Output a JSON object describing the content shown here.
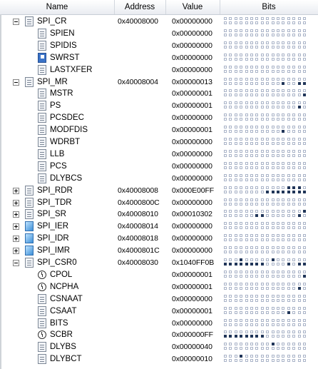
{
  "columns": {
    "name": "Name",
    "address": "Address",
    "value": "Value",
    "bits": "Bits"
  },
  "rows": [
    {
      "name": "SPI_CR",
      "level": 0,
      "expander": "minus",
      "icon": "reg",
      "address": "0x40008000",
      "value": "0x00000000",
      "bits": []
    },
    {
      "name": "SPIEN",
      "level": 1,
      "icon": "reg",
      "address": "",
      "value": "0x00000000",
      "bits": []
    },
    {
      "name": "SPIDIS",
      "level": 1,
      "icon": "reg",
      "address": "",
      "value": "0x00000000",
      "bits": []
    },
    {
      "name": "SWRST",
      "level": 1,
      "icon": "flag",
      "address": "",
      "value": "0x00000000",
      "bits": []
    },
    {
      "name": "LASTXFER",
      "level": 1,
      "icon": "reg",
      "address": "",
      "value": "0x00000000",
      "bits": []
    },
    {
      "name": "SPI_MR",
      "level": 0,
      "expander": "minus",
      "icon": "reg",
      "address": "0x40008004",
      "value": "0x00000013",
      "bits": [
        0,
        1,
        4
      ]
    },
    {
      "name": "MSTR",
      "level": 1,
      "icon": "reg",
      "address": "",
      "value": "0x00000001",
      "bits": [
        0
      ]
    },
    {
      "name": "PS",
      "level": 1,
      "icon": "reg",
      "address": "",
      "value": "0x00000001",
      "bits": [
        1
      ]
    },
    {
      "name": "PCSDEC",
      "level": 1,
      "icon": "reg",
      "address": "",
      "value": "0x00000000",
      "bits": []
    },
    {
      "name": "MODFDIS",
      "level": 1,
      "icon": "reg",
      "address": "",
      "value": "0x00000001",
      "bits": [
        4
      ]
    },
    {
      "name": "WDRBT",
      "level": 1,
      "icon": "reg",
      "address": "",
      "value": "0x00000000",
      "bits": []
    },
    {
      "name": "LLB",
      "level": 1,
      "icon": "reg",
      "address": "",
      "value": "0x00000000",
      "bits": []
    },
    {
      "name": "PCS",
      "level": 1,
      "icon": "reg",
      "address": "",
      "value": "0x00000000",
      "bits": []
    },
    {
      "name": "DLYBCS",
      "level": 1,
      "icon": "reg",
      "address": "",
      "value": "0x00000000",
      "bits": []
    },
    {
      "name": "SPI_RDR",
      "level": 0,
      "expander": "plus",
      "icon": "reg",
      "address": "0x40008008",
      "value": "0x000E00FF",
      "bits": [
        0,
        1,
        2,
        3,
        4,
        5,
        6,
        7,
        17,
        18,
        19
      ]
    },
    {
      "name": "SPI_TDR",
      "level": 0,
      "expander": "plus",
      "icon": "reg",
      "address": "0x4000800C",
      "value": "0x00000000",
      "bits": []
    },
    {
      "name": "SPI_SR",
      "level": 0,
      "expander": "plus",
      "icon": "reg",
      "address": "0x40008010",
      "value": "0x00010302",
      "bits": [
        1,
        8,
        9,
        16
      ]
    },
    {
      "name": "SPI_IER",
      "level": 0,
      "expander": "plus",
      "icon": "irq",
      "address": "0x40008014",
      "value": "0x00000000",
      "bits": []
    },
    {
      "name": "SPI_IDR",
      "level": 0,
      "expander": "plus",
      "icon": "irq",
      "address": "0x40008018",
      "value": "0x00000000",
      "bits": []
    },
    {
      "name": "SPI_IMR",
      "level": 0,
      "expander": "plus",
      "icon": "irq",
      "address": "0x4000801C",
      "value": "0x00000000",
      "bits": []
    },
    {
      "name": "SPI_CSR0",
      "level": 0,
      "expander": "minus",
      "icon": "reg",
      "address": "0x40008030",
      "value": "0x1040FF0B",
      "bits": [
        0,
        1,
        3,
        8,
        9,
        10,
        11,
        12,
        13,
        14,
        15,
        22,
        28
      ]
    },
    {
      "name": "CPOL",
      "level": 1,
      "icon": "clock",
      "address": "",
      "value": "0x00000001",
      "bits": [
        0
      ]
    },
    {
      "name": "NCPHA",
      "level": 1,
      "icon": "clock",
      "address": "",
      "value": "0x00000001",
      "bits": [
        1
      ]
    },
    {
      "name": "CSNAAT",
      "level": 1,
      "icon": "reg",
      "address": "",
      "value": "0x00000000",
      "bits": []
    },
    {
      "name": "CSAAT",
      "level": 1,
      "icon": "reg",
      "address": "",
      "value": "0x00000001",
      "bits": [
        3
      ]
    },
    {
      "name": "BITS",
      "level": 1,
      "icon": "reg",
      "address": "",
      "value": "0x00000000",
      "bits": []
    },
    {
      "name": "SCBR",
      "level": 1,
      "icon": "clock",
      "address": "",
      "value": "0x000000FF",
      "bits": [
        8,
        9,
        10,
        11,
        12,
        13,
        14,
        15
      ]
    },
    {
      "name": "DLYBS",
      "level": 1,
      "icon": "reg",
      "address": "",
      "value": "0x00000040",
      "bits": [
        22
      ]
    },
    {
      "name": "DLYBCT",
      "level": 1,
      "icon": "reg",
      "address": "",
      "value": "0x00000010",
      "bits": [
        28
      ]
    }
  ],
  "colors": {
    "bit_on": "#213659",
    "bit_off_border": "#aab4c8",
    "header_bg": "#e9ecf1"
  }
}
